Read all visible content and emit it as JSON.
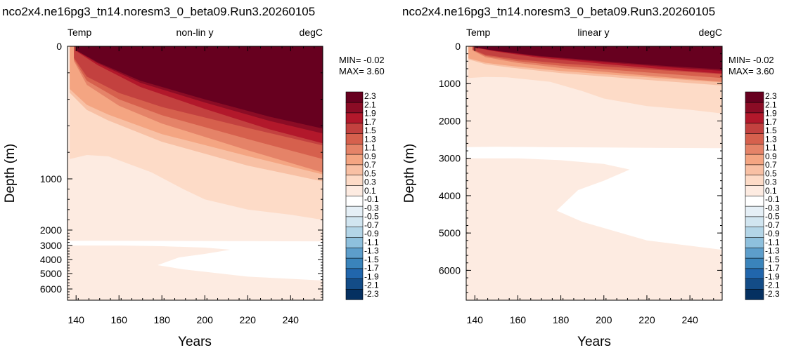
{
  "palette": [
    "#053061",
    "#134c87",
    "#2166ac",
    "#3a84bb",
    "#5d9ecb",
    "#8ec0dd",
    "#b3d5e7",
    "#d1e5f0",
    "#e5eff6",
    "#ffffff",
    "#fdebe1",
    "#fddbc7",
    "#f8c0a4",
    "#f4a582",
    "#e58368",
    "#d6604d",
    "#c3413f",
    "#b2182b",
    "#8b0c25",
    "#67001f"
  ],
  "colorbar_labels": [
    "2.3",
    "2.1",
    "1.9",
    "1.7",
    "1.5",
    "1.3",
    "1.1",
    "0.9",
    "0.7",
    "0.5",
    "0.3",
    "0.1",
    "-0.1",
    "-0.3",
    "-0.5",
    "-0.7",
    "-0.9",
    "-1.1",
    "-1.3",
    "-1.5",
    "-1.7",
    "-1.9",
    "-2.1",
    "-2.3"
  ],
  "chart_data": [
    {
      "type": "heatmap",
      "title": "nco2x4.ne16pg3_tn14.noresm3_0_beta09.Run3.20260105",
      "subtitle_left": "Temp",
      "subtitle_center": "non-lin y",
      "subtitle_right": "degC",
      "xlabel": "Years",
      "ylabel": "Depth (m)",
      "xlim": [
        136,
        255
      ],
      "ylim": [
        0,
        6800
      ],
      "y_scale": "non-linear",
      "xticks": [
        "140",
        "160",
        "180",
        "200",
        "220",
        "240"
      ],
      "yticks": [
        "0",
        "1000",
        "2000",
        "3000",
        "4000",
        "5000",
        "6000"
      ],
      "min_label": "MIN= -0.02",
      "max_label": "MAX=  3.60",
      "contour_boundaries": [
        {
          "level": 0.1,
          "depth": [
            [
              137,
              2700
            ],
            [
              150,
              2690
            ],
            [
              170,
              2700
            ],
            [
              200,
              2710
            ],
            [
              220,
              2720
            ],
            [
              255,
              2730
            ]
          ]
        },
        {
          "level": 0.1,
          "depth": [
            [
              140,
              3000
            ],
            [
              160,
              3000
            ],
            [
              180,
              3050
            ],
            [
              200,
              3150
            ],
            [
              212,
              3300
            ],
            [
              200,
              3600
            ],
            [
              188,
              3850
            ],
            [
              178,
              4400
            ],
            [
              190,
              4700
            ],
            [
              220,
              5200
            ],
            [
              255,
              5450
            ]
          ]
        },
        {
          "level": 0.3,
          "depth": [
            [
              137,
              850
            ],
            [
              145,
              820
            ],
            [
              155,
              830
            ],
            [
              175,
              950
            ],
            [
              190,
              1200
            ],
            [
              200,
              1400
            ],
            [
              220,
              1600
            ],
            [
              240,
              1700
            ],
            [
              255,
              1800
            ]
          ]
        },
        {
          "level": 0.5,
          "depth": [
            [
              137,
              350
            ],
            [
              145,
              480
            ],
            [
              155,
              560
            ],
            [
              180,
              720
            ],
            [
              220,
              900
            ],
            [
              255,
              1050
            ]
          ]
        },
        {
          "level": 1.1,
          "depth": [
            [
              139,
              100
            ],
            [
              145,
              260
            ],
            [
              160,
              400
            ],
            [
              180,
              520
            ],
            [
              220,
              700
            ],
            [
              255,
              850
            ]
          ]
        },
        {
          "level": 2.3,
          "depth": [
            [
              140,
              30
            ],
            [
              150,
              120
            ],
            [
              170,
              260
            ],
            [
              200,
              400
            ],
            [
              230,
              530
            ],
            [
              255,
              620
            ]
          ]
        }
      ]
    },
    {
      "type": "heatmap",
      "title": "nco2x4.ne16pg3_tn14.noresm3_0_beta09.Run3.20260105",
      "subtitle_left": "Temp",
      "subtitle_center": "linear y",
      "subtitle_right": "degC",
      "xlabel": "Years",
      "ylabel": "Depth (m)",
      "xlim": [
        136,
        255
      ],
      "ylim": [
        0,
        6800
      ],
      "y_scale": "linear",
      "xticks": [
        "140",
        "160",
        "180",
        "200",
        "220",
        "240"
      ],
      "yticks": [
        "0",
        "1000",
        "2000",
        "3000",
        "4000",
        "5000",
        "6000"
      ],
      "min_label": "MIN= -0.02",
      "max_label": "MAX=  3.60",
      "contour_boundaries": [
        {
          "level": 0.1,
          "depth": [
            [
              137,
              2700
            ],
            [
              150,
              2690
            ],
            [
              170,
              2700
            ],
            [
              200,
              2710
            ],
            [
              220,
              2720
            ],
            [
              255,
              2730
            ]
          ]
        },
        {
          "level": 0.1,
          "depth": [
            [
              140,
              3000
            ],
            [
              160,
              3000
            ],
            [
              180,
              3050
            ],
            [
              200,
              3150
            ],
            [
              212,
              3300
            ],
            [
              200,
              3600
            ],
            [
              188,
              3850
            ],
            [
              178,
              4400
            ],
            [
              190,
              4700
            ],
            [
              220,
              5200
            ],
            [
              255,
              5450
            ]
          ]
        },
        {
          "level": 0.3,
          "depth": [
            [
              137,
              850
            ],
            [
              145,
              820
            ],
            [
              155,
              830
            ],
            [
              175,
              950
            ],
            [
              190,
              1200
            ],
            [
              200,
              1400
            ],
            [
              220,
              1600
            ],
            [
              240,
              1700
            ],
            [
              255,
              1800
            ]
          ]
        },
        {
          "level": 0.5,
          "depth": [
            [
              137,
              350
            ],
            [
              145,
              480
            ],
            [
              155,
              560
            ],
            [
              180,
              720
            ],
            [
              220,
              900
            ],
            [
              255,
              1050
            ]
          ]
        },
        {
          "level": 1.1,
          "depth": [
            [
              139,
              100
            ],
            [
              145,
              260
            ],
            [
              160,
              400
            ],
            [
              180,
              520
            ],
            [
              220,
              700
            ],
            [
              255,
              850
            ]
          ]
        },
        {
          "level": 2.3,
          "depth": [
            [
              140,
              30
            ],
            [
              150,
              120
            ],
            [
              170,
              260
            ],
            [
              200,
              400
            ],
            [
              230,
              530
            ],
            [
              255,
              620
            ]
          ]
        }
      ]
    }
  ]
}
